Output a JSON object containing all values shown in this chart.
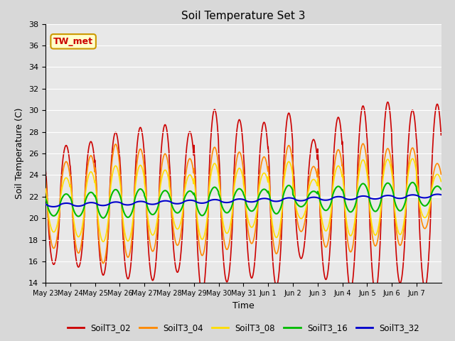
{
  "title": "Soil Temperature Set 3",
  "xlabel": "Time",
  "ylabel": "Soil Temperature (C)",
  "ylim": [
    14,
    38
  ],
  "yticks": [
    14,
    16,
    18,
    20,
    22,
    24,
    26,
    28,
    30,
    32,
    34,
    36,
    38
  ],
  "annotation_text": "TW_met",
  "annotation_color": "#cc0000",
  "annotation_bg": "#ffffcc",
  "annotation_border": "#cc9900",
  "fig_bg": "#d8d8d8",
  "plot_bg": "#e8e8e8",
  "series_colors": {
    "SoilT3_02": "#cc0000",
    "SoilT3_04": "#ff8800",
    "SoilT3_08": "#ffdd00",
    "SoilT3_16": "#00bb00",
    "SoilT3_32": "#0000cc"
  },
  "series_lw": {
    "SoilT3_02": 1.2,
    "SoilT3_04": 1.2,
    "SoilT3_08": 1.2,
    "SoilT3_16": 1.5,
    "SoilT3_32": 1.5
  },
  "n_days": 16,
  "points_per_day": 96,
  "base_temp": 21.2,
  "trend": 0.055,
  "amp_02": [
    5.5,
    5.8,
    6.6,
    7.0,
    7.2,
    6.5,
    8.5,
    7.5,
    7.2,
    8.0,
    5.5,
    7.5,
    8.5,
    8.8,
    8.0,
    8.5
  ],
  "amp_04": [
    4.0,
    4.5,
    5.5,
    5.0,
    4.5,
    4.0,
    5.0,
    4.5,
    4.0,
    5.0,
    3.0,
    4.5,
    5.0,
    4.5,
    4.5,
    3.0
  ],
  "amp_08": [
    2.5,
    3.0,
    3.5,
    3.5,
    3.0,
    2.5,
    3.5,
    3.0,
    2.5,
    3.5,
    1.8,
    3.0,
    3.5,
    3.5,
    3.5,
    2.0
  ],
  "amp_16": [
    1.0,
    1.1,
    1.3,
    1.3,
    1.1,
    1.0,
    1.3,
    1.1,
    1.0,
    1.3,
    0.7,
    1.1,
    1.3,
    1.3,
    1.3,
    0.9
  ],
  "amp_32": [
    0.15,
    0.15,
    0.15,
    0.15,
    0.15,
    0.15,
    0.15,
    0.15,
    0.15,
    0.15,
    0.15,
    0.15,
    0.15,
    0.15,
    0.15,
    0.15
  ],
  "tick_labels": [
    "May 23",
    "May 24",
    "May 25",
    "May 26",
    "May 27",
    "May 28",
    "May 29",
    "May 30",
    "May 31",
    "Jun 1",
    "Jun 2",
    "Jun 3",
    "Jun 4",
    "Jun 5",
    "Jun 6",
    "Jun 7"
  ],
  "legend_entries": [
    "SoilT3_02",
    "SoilT3_04",
    "SoilT3_08",
    "SoilT3_16",
    "SoilT3_32"
  ],
  "grid_color": "#ffffff",
  "tick_fontsize": 7,
  "label_fontsize": 9,
  "title_fontsize": 11
}
